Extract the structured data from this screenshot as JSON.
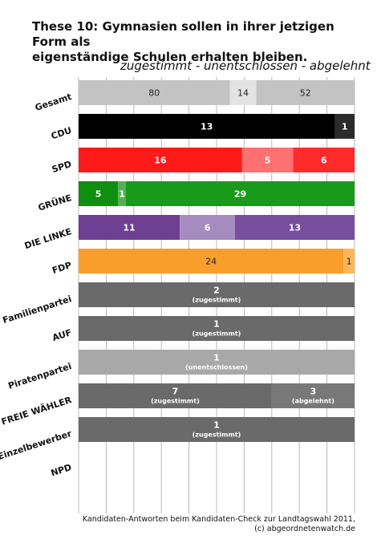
{
  "title_lines": [
    "These 10: Gymnasien sollen in ihrer jetzigen Form als",
    "eigenständige Schulen erhalten bleiben."
  ],
  "subtitle": "zugestimmt - unentschlossen - abgelehnt",
  "footer_lines": [
    "Kandidaten-Antworten beim Kandidaten-Check zur Landtagswahl 2011,",
    "(c) abgeordnetenwatch.de"
  ],
  "colors": {
    "gesamt": [
      "#c3c3c3",
      "#e3e3e3",
      "#c3c3c3"
    ],
    "CDU": [
      "#000000",
      "#777777",
      "#2b2b2b"
    ],
    "SPD": [
      "#ff1a1a",
      "#ff7070",
      "#ff2a2a"
    ],
    "GRÜNE": [
      "#0f8f0f",
      "#55b055",
      "#1a9a1a"
    ],
    "DIE LINKE": [
      "#6e3f93",
      "#a48bc0",
      "#784ea0"
    ],
    "FDP": [
      "#f99e2a",
      "#fcc886",
      "#fbb65a"
    ],
    "single_agree": "#6a6a6a",
    "single_undecided": "#a8a8a8",
    "single_reject": "#787878",
    "grid": "#b8b8b8"
  },
  "chart_data": {
    "type": "bar",
    "orientation": "horizontal",
    "stacked": true,
    "normalized": true,
    "grid": true,
    "xlim": [
      0,
      1
    ],
    "series": [
      {
        "name": "zugestimmt"
      },
      {
        "name": "unentschlossen"
      },
      {
        "name": "abgelehnt"
      }
    ],
    "categories": [
      "Gesamt",
      "CDU",
      "SPD",
      "GRÜNE",
      "DIE LINKE",
      "FDP",
      "Familienpartei",
      "AUF",
      "Piratenpartei",
      "FREIE WÄHLER",
      "Einzelbewerber",
      "NPD"
    ],
    "rows": [
      {
        "party": "Gesamt",
        "values": [
          80,
          14,
          52
        ],
        "colorKey": "gesamt"
      },
      {
        "party": "CDU",
        "values": [
          13,
          0,
          1
        ],
        "colorKey": "CDU"
      },
      {
        "party": "SPD",
        "values": [
          16,
          5,
          6
        ],
        "colorKey": "SPD"
      },
      {
        "party": "GRÜNE",
        "values": [
          5,
          1,
          29
        ],
        "colorKey": "GRÜNE"
      },
      {
        "party": "DIE LINKE",
        "values": [
          11,
          6,
          13
        ],
        "colorKey": "DIE LINKE"
      },
      {
        "party": "FDP",
        "values": [
          24,
          0,
          1
        ],
        "colorKey": "FDP"
      },
      {
        "party": "Familienpartei",
        "values": [
          2,
          0,
          0
        ],
        "annotation": [
          "(zugestimmt)",
          "",
          ""
        ]
      },
      {
        "party": "AUF",
        "values": [
          1,
          0,
          0
        ],
        "annotation": [
          "(zugestimmt)",
          "",
          ""
        ]
      },
      {
        "party": "Piratenpartei",
        "values": [
          0,
          1,
          0
        ],
        "annotation": [
          "",
          "(unentschlossen)",
          ""
        ]
      },
      {
        "party": "FREIE WÄHLER",
        "values": [
          7,
          0,
          3
        ],
        "annotation": [
          "(zugestimmt)",
          "",
          "(abgelehnt)"
        ]
      },
      {
        "party": "Einzelbewerber",
        "values": [
          1,
          0,
          0
        ],
        "annotation": [
          "(zugestimmt)",
          "",
          ""
        ]
      },
      {
        "party": "NPD",
        "values": [
          0,
          0,
          0
        ]
      }
    ]
  }
}
